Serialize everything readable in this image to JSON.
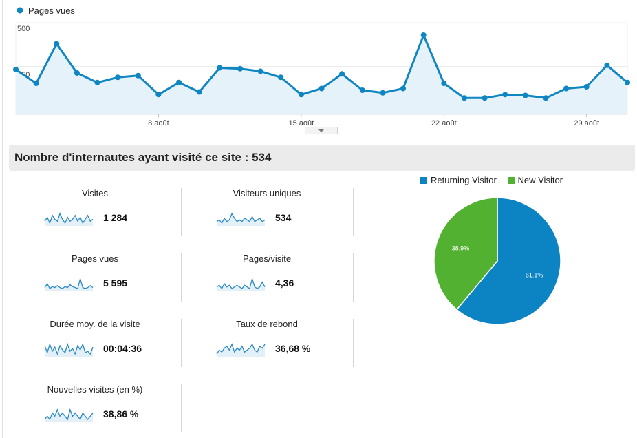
{
  "chart_data": [
    {
      "type": "area",
      "series": [
        {
          "name": "Pages vues",
          "values": [
            260,
            180,
            410,
            240,
            185,
            215,
            225,
            115,
            185,
            130,
            270,
            265,
            250,
            215,
            115,
            150,
            235,
            140,
            125,
            150,
            460,
            180,
            95,
            95,
            115,
            110,
            95,
            150,
            160,
            285,
            185
          ]
        }
      ],
      "x_ticks": [
        "8 août",
        "15 août",
        "22 août",
        "29 août"
      ],
      "y_ticks": [
        "500",
        "250"
      ],
      "ylim": [
        0,
        500
      ],
      "grid": true,
      "color": "#0f86c2"
    },
    {
      "type": "pie",
      "categories": [
        "Returning Visitor",
        "New Visitor"
      ],
      "values": [
        61.1,
        38.9
      ],
      "labels": [
        "61.1%",
        "38.9%"
      ],
      "colors": [
        "#0c84c4",
        "#52b130"
      ],
      "legend": "top"
    }
  ],
  "summary_title": "Nombre d'internautes ayant visité ce site : 534",
  "metrics": [
    {
      "label": "Visites",
      "value": "1 284",
      "spark": [
        5,
        7,
        4,
        8,
        6,
        5,
        9,
        6,
        4,
        7,
        5,
        6,
        8,
        5,
        7,
        4,
        6,
        8,
        5,
        6
      ]
    },
    {
      "label": "Visiteurs uniques",
      "value": "534",
      "spark": [
        5,
        6,
        4,
        7,
        5,
        6,
        10,
        7,
        5,
        6,
        5,
        7,
        6,
        5,
        8,
        5,
        6,
        7,
        5,
        6
      ]
    },
    {
      "label": "Pages vues",
      "value": "5 595",
      "spark": [
        4,
        8,
        3,
        5,
        4,
        6,
        4,
        3,
        5,
        4,
        7,
        5,
        4,
        3,
        13,
        4,
        3,
        4,
        6,
        4
      ]
    },
    {
      "label": "Pages/visite",
      "value": "4,36",
      "spark": [
        5,
        6,
        4,
        7,
        5,
        6,
        4,
        5,
        6,
        5,
        4,
        6,
        5,
        4,
        10,
        5,
        4,
        5,
        8,
        5
      ]
    },
    {
      "label": "Durée moy. de la visite",
      "value": "00:04:36",
      "spark": [
        8,
        3,
        9,
        4,
        7,
        2,
        8,
        5,
        3,
        9,
        4,
        6,
        2,
        8,
        5,
        9,
        3,
        4,
        2,
        7
      ]
    },
    {
      "label": "Taux de rebond",
      "value": "36,68 %",
      "spark": [
        4,
        6,
        5,
        7,
        8,
        6,
        9,
        5,
        7,
        6,
        8,
        5,
        6,
        7,
        9,
        6,
        5,
        8,
        7,
        9
      ]
    },
    {
      "label": "Nouvelles visites (en %)",
      "value": "38,86 %",
      "spark": [
        5,
        6,
        5,
        7,
        6,
        8,
        6,
        7,
        6,
        5,
        8,
        6,
        7,
        6,
        5,
        7,
        6,
        5,
        6,
        7
      ]
    }
  ]
}
